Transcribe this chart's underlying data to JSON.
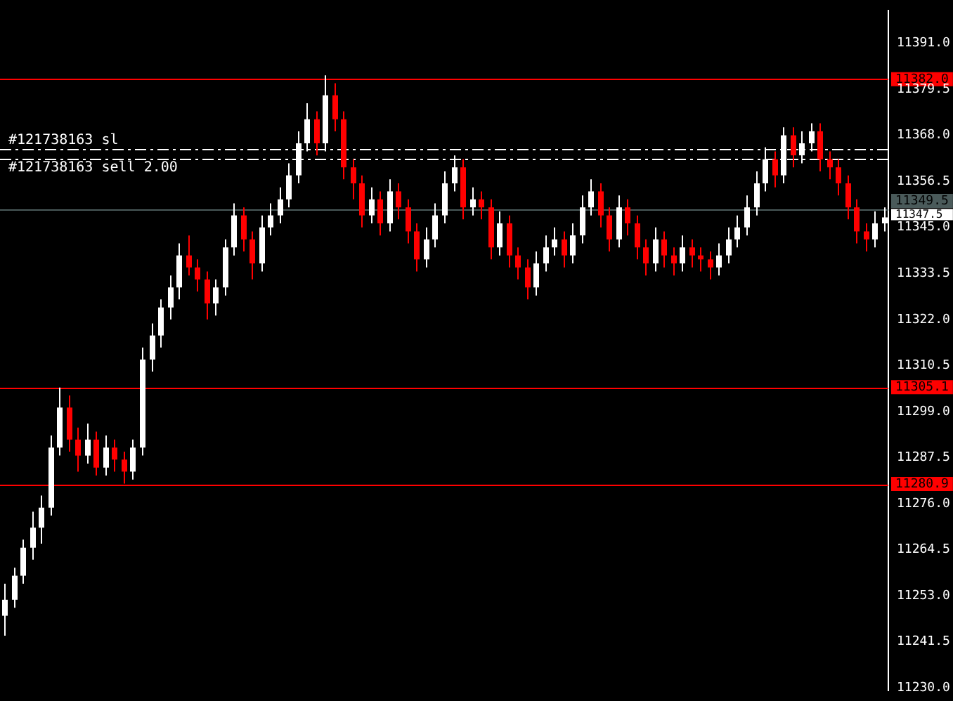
{
  "chart_data": {
    "type": "candlestick",
    "categories": [
      null,
      null,
      null,
      null,
      null,
      null,
      null,
      null,
      null,
      null,
      null,
      null,
      null,
      null,
      null,
      null,
      null,
      null,
      null,
      null,
      null,
      null,
      null,
      null,
      null,
      null,
      null,
      null,
      null,
      null,
      null,
      null,
      null,
      null,
      null,
      null,
      null,
      null,
      null,
      null,
      null,
      null,
      null,
      null,
      null,
      null,
      null,
      null,
      null,
      null,
      null,
      null,
      null,
      null,
      null,
      null,
      null,
      null,
      null,
      null,
      null,
      null,
      null,
      null,
      null,
      null,
      null,
      null,
      null,
      null,
      null,
      null,
      null,
      null,
      null,
      null,
      null,
      null,
      null,
      null,
      null,
      null,
      null,
      null,
      null,
      null,
      null,
      null,
      null,
      null,
      null,
      null,
      null,
      null,
      null,
      null,
      null
    ],
    "ohlc": [
      [
        11248,
        11256,
        11243,
        11252
      ],
      [
        11252,
        11260,
        11250,
        11258
      ],
      [
        11258,
        11267,
        11256,
        11265
      ],
      [
        11265,
        11274,
        11262,
        11270
      ],
      [
        11270,
        11278,
        11266,
        11275
      ],
      [
        11275,
        11293,
        11273,
        11290
      ],
      [
        11290,
        11305,
        11288,
        11300
      ],
      [
        11300,
        11303,
        11289,
        11292
      ],
      [
        11292,
        11295,
        11284,
        11288
      ],
      [
        11288,
        11296,
        11286,
        11292
      ],
      [
        11292,
        11294,
        11283,
        11285
      ],
      [
        11285,
        11293,
        11283,
        11290
      ],
      [
        11290,
        11292,
        11284,
        11287
      ],
      [
        11287,
        11289,
        11281,
        11284
      ],
      [
        11284,
        11292,
        11282,
        11290
      ],
      [
        11290,
        11315,
        11288,
        11312
      ],
      [
        11312,
        11321,
        11309,
        11318
      ],
      [
        11318,
        11327,
        11315,
        11325
      ],
      [
        11325,
        11333,
        11322,
        11330
      ],
      [
        11330,
        11341,
        11327,
        11338
      ],
      [
        11338,
        11343,
        11333,
        11335
      ],
      [
        11335,
        11337,
        11329,
        11332
      ],
      [
        11332,
        11334,
        11322,
        11326
      ],
      [
        11326,
        11332,
        11323,
        11330
      ],
      [
        11330,
        11342,
        11328,
        11340
      ],
      [
        11340,
        11351,
        11338,
        11348
      ],
      [
        11348,
        11350,
        11339,
        11342
      ],
      [
        11342,
        11344,
        11332,
        11336
      ],
      [
        11336,
        11348,
        11334,
        11345
      ],
      [
        11345,
        11351,
        11343,
        11348
      ],
      [
        11348,
        11355,
        11346,
        11352
      ],
      [
        11352,
        11361,
        11350,
        11358
      ],
      [
        11358,
        11369,
        11356,
        11366
      ],
      [
        11366,
        11376,
        11364,
        11372
      ],
      [
        11372,
        11374,
        11363,
        11366
      ],
      [
        11366,
        11383,
        11364,
        11378
      ],
      [
        11378,
        11381,
        11369,
        11372
      ],
      [
        11372,
        11374,
        11357,
        11360
      ],
      [
        11360,
        11362,
        11352,
        11356
      ],
      [
        11356,
        11358,
        11345,
        11348
      ],
      [
        11348,
        11355,
        11346,
        11352
      ],
      [
        11352,
        11354,
        11343,
        11346
      ],
      [
        11346,
        11357,
        11344,
        11354
      ],
      [
        11354,
        11356,
        11347,
        11350
      ],
      [
        11350,
        11352,
        11341,
        11344
      ],
      [
        11344,
        11346,
        11334,
        11337
      ],
      [
        11337,
        11345,
        11335,
        11342
      ],
      [
        11342,
        11351,
        11340,
        11348
      ],
      [
        11348,
        11359,
        11346,
        11356
      ],
      [
        11356,
        11363,
        11354,
        11360
      ],
      [
        11360,
        11362,
        11347,
        11350
      ],
      [
        11350,
        11355,
        11348,
        11352
      ],
      [
        11352,
        11354,
        11347,
        11350
      ],
      [
        11350,
        11352,
        11337,
        11340
      ],
      [
        11340,
        11349,
        11338,
        11346
      ],
      [
        11346,
        11348,
        11335,
        11338
      ],
      [
        11338,
        11340,
        11332,
        11335
      ],
      [
        11335,
        11337,
        11327,
        11330
      ],
      [
        11330,
        11339,
        11328,
        11336
      ],
      [
        11336,
        11343,
        11334,
        11340
      ],
      [
        11340,
        11345,
        11338,
        11342
      ],
      [
        11342,
        11344,
        11335,
        11338
      ],
      [
        11338,
        11346,
        11336,
        11343
      ],
      [
        11343,
        11353,
        11341,
        11350
      ],
      [
        11350,
        11357,
        11348,
        11354
      ],
      [
        11354,
        11356,
        11345,
        11348
      ],
      [
        11348,
        11350,
        11339,
        11342
      ],
      [
        11342,
        11353,
        11340,
        11350
      ],
      [
        11350,
        11352,
        11343,
        11346
      ],
      [
        11346,
        11348,
        11337,
        11340
      ],
      [
        11340,
        11342,
        11333,
        11336
      ],
      [
        11336,
        11345,
        11334,
        11342
      ],
      [
        11342,
        11344,
        11335,
        11338
      ],
      [
        11338,
        11340,
        11333,
        11336
      ],
      [
        11336,
        11343,
        11334,
        11340
      ],
      [
        11340,
        11342,
        11335,
        11338
      ],
      [
        11338,
        11340,
        11334,
        11337
      ],
      [
        11337,
        11339,
        11332,
        11335
      ],
      [
        11335,
        11341,
        11333,
        11338
      ],
      [
        11338,
        11345,
        11336,
        11342
      ],
      [
        11342,
        11348,
        11340,
        11345
      ],
      [
        11345,
        11353,
        11343,
        11350
      ],
      [
        11350,
        11359,
        11348,
        11356
      ],
      [
        11356,
        11365,
        11354,
        11362
      ],
      [
        11362,
        11364,
        11355,
        11358
      ],
      [
        11358,
        11370,
        11356,
        11368
      ],
      [
        11368,
        11370,
        11360,
        11363
      ],
      [
        11363,
        11369,
        11361,
        11366
      ],
      [
        11366,
        11371,
        11364,
        11369
      ],
      [
        11369,
        11371,
        11359,
        11362
      ],
      [
        11362,
        11364,
        11357,
        11360
      ],
      [
        11360,
        11362,
        11353,
        11356
      ],
      [
        11356,
        11358,
        11347,
        11350
      ],
      [
        11350,
        11352,
        11341,
        11344
      ],
      [
        11344,
        11346,
        11339,
        11342
      ],
      [
        11342,
        11349,
        11340,
        11346
      ],
      [
        11346,
        11350,
        11344,
        11347.5
      ]
    ],
    "colors": [
      "#ffffff",
      "#ffffff",
      "#ffffff",
      "#ffffff",
      "#ffffff",
      "#ffffff",
      "#ffffff",
      "#ff0000",
      "#ff0000",
      "#ffffff",
      "#ff0000",
      "#ffffff",
      "#ff0000",
      "#ff0000",
      "#ffffff",
      "#ffffff",
      "#ffffff",
      "#ffffff",
      "#ffffff",
      "#ffffff",
      "#ff0000",
      "#ff0000",
      "#ff0000",
      "#ffffff",
      "#ffffff",
      "#ffffff",
      "#ff0000",
      "#ff0000",
      "#ffffff",
      "#ffffff",
      "#ffffff",
      "#ffffff",
      "#ffffff",
      "#ffffff",
      "#ff0000",
      "#ffffff",
      "#ff0000",
      "#ff0000",
      "#ff0000",
      "#ff0000",
      "#ffffff",
      "#ff0000",
      "#ffffff",
      "#ff0000",
      "#ff0000",
      "#ff0000",
      "#ffffff",
      "#ffffff",
      "#ffffff",
      "#ffffff",
      "#ff0000",
      "#ffffff",
      "#ff0000",
      "#ff0000",
      "#ffffff",
      "#ff0000",
      "#ff0000",
      "#ff0000",
      "#ffffff",
      "#ffffff",
      "#ffffff",
      "#ff0000",
      "#ffffff",
      "#ffffff",
      "#ffffff",
      "#ff0000",
      "#ff0000",
      "#ffffff",
      "#ff0000",
      "#ff0000",
      "#ff0000",
      "#ffffff",
      "#ff0000",
      "#ff0000",
      "#ffffff",
      "#ff0000",
      "#ff0000",
      "#ff0000",
      "#ffffff",
      "#ffffff",
      "#ffffff",
      "#ffffff",
      "#ffffff",
      "#ffffff",
      "#ff0000",
      "#ffffff",
      "#ff0000",
      "#ffffff",
      "#ffffff",
      "#ff0000",
      "#ff0000",
      "#ff0000",
      "#ff0000",
      "#ff0000",
      "#ff0000",
      "#ffffff",
      "#ffffff"
    ],
    "ylim": [
      11229.3,
      11399.2
    ],
    "yticks": [
      {
        "value": 11230,
        "label": "11230.0"
      },
      {
        "value": 11241.5,
        "label": "11241.5"
      },
      {
        "value": 11253,
        "label": "11253.0"
      },
      {
        "value": 11264.5,
        "label": "11264.5"
      },
      {
        "value": 11276,
        "label": "11276.0"
      },
      {
        "value": 11287.5,
        "label": "11287.5"
      },
      {
        "value": 11299,
        "label": "11299.0"
      },
      {
        "value": 11310.5,
        "label": "11310.5"
      },
      {
        "value": 11322,
        "label": "11322.0"
      },
      {
        "value": 11333.5,
        "label": "11333.5"
      },
      {
        "value": 11345,
        "label": "11345.0"
      },
      {
        "value": 11356.5,
        "label": "11356.5"
      },
      {
        "value": 11368,
        "label": "11368.0"
      },
      {
        "value": 11379.5,
        "label": "11379.5"
      },
      {
        "value": 11391,
        "label": "11391.0"
      }
    ],
    "ref_lines": [
      {
        "axis": "y",
        "value": 11382.0,
        "label": "11382.0",
        "color": "#ff0000"
      },
      {
        "axis": "y",
        "value": 11305.1,
        "label": "11305.1",
        "color": "#ff0000"
      },
      {
        "axis": "y",
        "value": 11280.9,
        "label": "11280.9",
        "color": "#ff0000"
      },
      {
        "axis": "y",
        "value": 11349.5,
        "label": "11349.5",
        "color": "#4a5a5a"
      },
      {
        "axis": "y",
        "value": 11364.7,
        "label": "#121738163 sl",
        "color": "#ffffff",
        "line_style": "dashed"
      },
      {
        "axis": "y",
        "value": 11362.3,
        "label": "#121738163 sell 2.00",
        "color": "#ffffff",
        "line_style": "dashed"
      }
    ],
    "annotations": [
      "11347.5"
    ],
    "grid": false,
    "legend": false
  }
}
